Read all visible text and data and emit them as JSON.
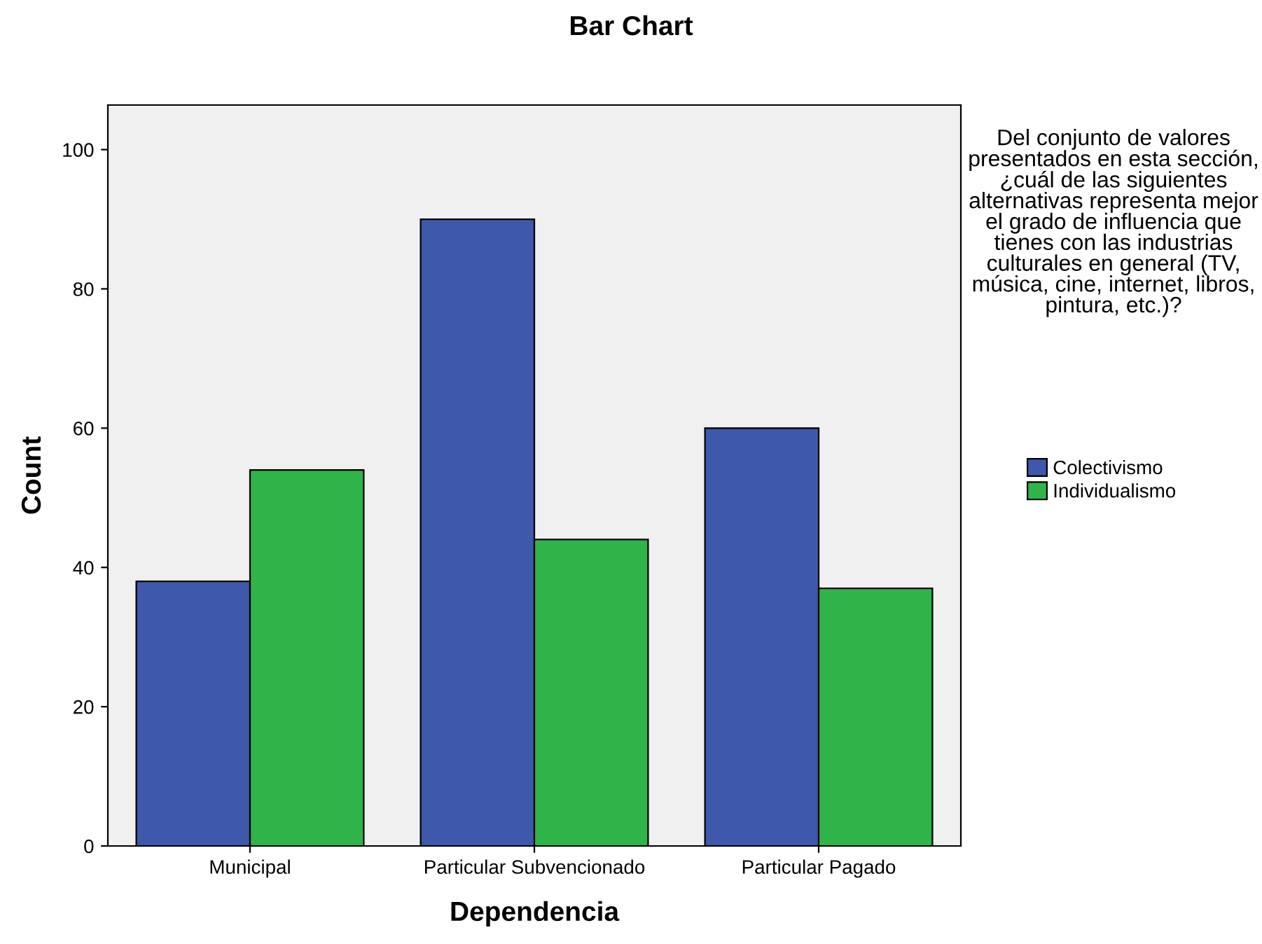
{
  "chart_data": {
    "type": "bar",
    "title": "Bar Chart",
    "xlabel": "Dependencia",
    "ylabel": "Count",
    "legend_title": "Del conjunto de valores presentados en esta sección, ¿cuál de las siguientes alternativas representa mejor el grado de influencia que tienes con las industrias culturales en general (TV, música, cine, internet, libros, pintura, etc.)?",
    "categories": [
      "Municipal",
      "Particular Subvencionado",
      "Particular Pagado"
    ],
    "series": [
      {
        "name": "Colectivismo",
        "color": "#3e58ac",
        "values": [
          38,
          90,
          60
        ]
      },
      {
        "name": "Individualismo",
        "color": "#2fb44a",
        "values": [
          54,
          44,
          37
        ]
      }
    ],
    "ylim": [
      0,
      106.4
    ],
    "yticks": [
      0,
      20,
      40,
      60,
      80,
      100
    ],
    "grid": false,
    "legend": "right"
  }
}
